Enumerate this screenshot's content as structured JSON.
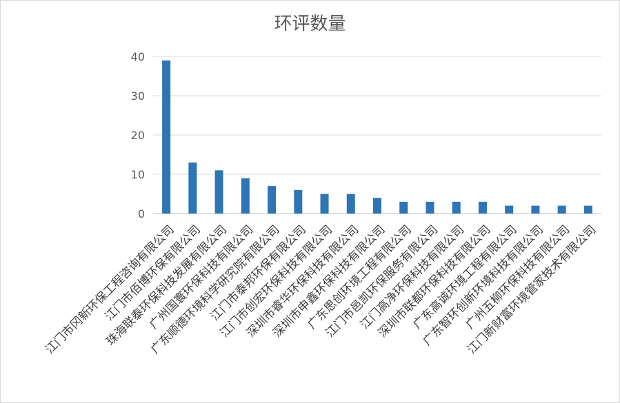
{
  "chart_data": {
    "type": "bar",
    "title": "环评数量",
    "xlabel": "",
    "ylabel": "",
    "ylim": [
      0,
      40
    ],
    "yticks": [
      0,
      10,
      20,
      30,
      40
    ],
    "grid": true,
    "legend": "none",
    "bar_color": "#2e75b6",
    "categories": [
      "江门市冈新环保工程咨询有限公司",
      "江门市佰博环保有限公司",
      "珠海联泰环保科技发展有限公司",
      "广州国寰环保科技有限公司",
      "广东顺德环境科学研究院有限公司",
      "江门市泰邦环保有限公司",
      "江门市创宏环保科技有限公司",
      "深圳市睿华环保科技有限公司",
      "深圳市申鑫环保科技有限公司",
      "广东思创环境工程有限公司",
      "江门市邑凯环保服务有限公司",
      "江门高净环保科技有限公司",
      "深圳市联都环保科技有限公司",
      "广东高诚环境工程有限公司",
      "广东智环创新环境科技有限公司",
      "广州五柳环保科技有限公司",
      "江门新财富环境管家技术有限公司"
    ],
    "values": [
      39,
      13,
      11,
      9,
      7,
      6,
      5,
      5,
      4,
      3,
      3,
      3,
      3,
      2,
      2,
      2,
      2
    ]
  }
}
